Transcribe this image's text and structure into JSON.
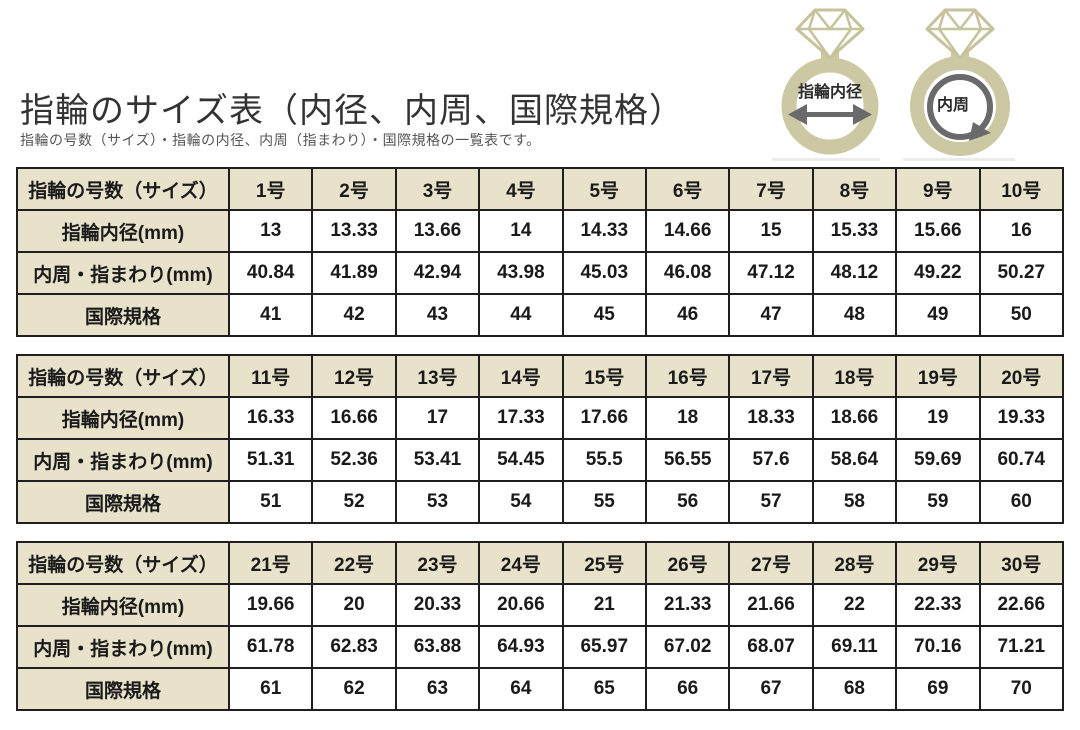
{
  "page": {
    "title": "指輪のサイズ表（内径、内周、国際規格）",
    "subtitle": "指輪の号数（サイズ）・指輪の内径、内周（指まわり）・国際規格の一覧表です。"
  },
  "diagrams": {
    "inner_diameter_label": "指輪内径",
    "circumference_label": "内周"
  },
  "colors": {
    "header_bg": "#e8e2cb",
    "table_border": "#1f1f1f",
    "ring_band": "#ccc8a3",
    "arrow_gray": "#6a6a6a"
  },
  "chart_data": {
    "type": "table",
    "title": "指輪のサイズ表（内径、内周、国際規格）",
    "row_labels": {
      "size": "指輪の号数（サイズ）",
      "inner_diameter": "指輪内径(mm)",
      "circumference": "内周・指まわり(mm)",
      "international": "国際規格"
    },
    "tables": [
      {
        "sizes": [
          "1号",
          "2号",
          "3号",
          "4号",
          "5号",
          "6号",
          "7号",
          "8号",
          "9号",
          "10号"
        ],
        "inner_diameter_mm": [
          "13",
          "13.33",
          "13.66",
          "14",
          "14.33",
          "14.66",
          "15",
          "15.33",
          "15.66",
          "16"
        ],
        "circumference_mm": [
          "40.84",
          "41.89",
          "42.94",
          "43.98",
          "45.03",
          "46.08",
          "47.12",
          "48.12",
          "49.22",
          "50.27"
        ],
        "international": [
          "41",
          "42",
          "43",
          "44",
          "45",
          "46",
          "47",
          "48",
          "49",
          "50"
        ]
      },
      {
        "sizes": [
          "11号",
          "12号",
          "13号",
          "14号",
          "15号",
          "16号",
          "17号",
          "18号",
          "19号",
          "20号"
        ],
        "inner_diameter_mm": [
          "16.33",
          "16.66",
          "17",
          "17.33",
          "17.66",
          "18",
          "18.33",
          "18.66",
          "19",
          "19.33"
        ],
        "circumference_mm": [
          "51.31",
          "52.36",
          "53.41",
          "54.45",
          "55.5",
          "56.55",
          "57.6",
          "58.64",
          "59.69",
          "60.74"
        ],
        "international": [
          "51",
          "52",
          "53",
          "54",
          "55",
          "56",
          "57",
          "58",
          "59",
          "60"
        ]
      },
      {
        "sizes": [
          "21号",
          "22号",
          "23号",
          "24号",
          "25号",
          "26号",
          "27号",
          "28号",
          "29号",
          "30号"
        ],
        "inner_diameter_mm": [
          "19.66",
          "20",
          "20.33",
          "20.66",
          "21",
          "21.33",
          "21.66",
          "22",
          "22.33",
          "22.66"
        ],
        "circumference_mm": [
          "61.78",
          "62.83",
          "63.88",
          "64.93",
          "65.97",
          "67.02",
          "68.07",
          "69.11",
          "70.16",
          "71.21"
        ],
        "international": [
          "61",
          "62",
          "63",
          "64",
          "65",
          "66",
          "67",
          "68",
          "69",
          "70"
        ]
      }
    ]
  }
}
